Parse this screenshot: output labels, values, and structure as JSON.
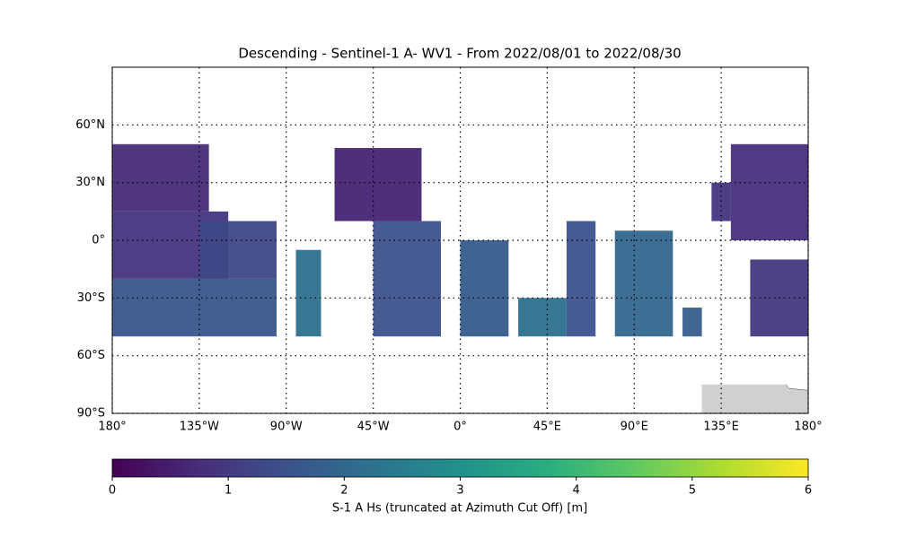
{
  "chart_data": {
    "type": "map",
    "title": "Descending - Sentinel-1 A- WV1 - From 2022/08/01 to 2022/08/30",
    "xlim": [
      -180,
      180
    ],
    "ylim": [
      -90,
      90
    ],
    "xticks": [
      {
        "value": -180,
        "label": "180°"
      },
      {
        "value": -135,
        "label": "135°W"
      },
      {
        "value": -90,
        "label": "90°W"
      },
      {
        "value": -45,
        "label": "45°W"
      },
      {
        "value": 0,
        "label": "0°"
      },
      {
        "value": 45,
        "label": "45°E"
      },
      {
        "value": 90,
        "label": "90°E"
      },
      {
        "value": 135,
        "label": "135°E"
      },
      {
        "value": 180,
        "label": "180°"
      }
    ],
    "yticks": [
      {
        "value": -90,
        "label": "90°S"
      },
      {
        "value": -60,
        "label": "60°S"
      },
      {
        "value": -30,
        "label": "30°S"
      },
      {
        "value": 0,
        "label": "0°"
      },
      {
        "value": 30,
        "label": "30°N"
      },
      {
        "value": 60,
        "label": "60°N"
      }
    ],
    "grid": true,
    "colormap": "viridis",
    "colorbar": {
      "label": "S-1 A Hs (truncated at Azimuth Cut Off) [m]",
      "clim": [
        0,
        6
      ],
      "ticks": [
        0,
        1,
        2,
        3,
        4,
        5,
        6
      ]
    },
    "cells": [
      {
        "lon": [
          -180,
          -130
        ],
        "lat": [
          15,
          50
        ],
        "value": 0.7
      },
      {
        "lon": [
          -180,
          -120
        ],
        "lat": [
          -20,
          15
        ],
        "value": 0.9
      },
      {
        "lon": [
          -180,
          -95
        ],
        "lat": [
          -50,
          -20
        ],
        "value": 1.6
      },
      {
        "lon": [
          -135,
          -95
        ],
        "lat": [
          -20,
          10
        ],
        "value": 1.3
      },
      {
        "lon": [
          -85,
          -72
        ],
        "lat": [
          -50,
          -5
        ],
        "value": 2.2
      },
      {
        "lon": [
          -65,
          -20
        ],
        "lat": [
          10,
          48
        ],
        "value": 0.6
      },
      {
        "lon": [
          -45,
          -10
        ],
        "lat": [
          -50,
          10
        ],
        "value": 1.5
      },
      {
        "lon": [
          0,
          25
        ],
        "lat": [
          -50,
          0
        ],
        "value": 1.7
      },
      {
        "lon": [
          30,
          55
        ],
        "lat": [
          -50,
          -30
        ],
        "value": 2.2
      },
      {
        "lon": [
          55,
          70
        ],
        "lat": [
          -50,
          10
        ],
        "value": 1.5
      },
      {
        "lon": [
          80,
          110
        ],
        "lat": [
          -50,
          5
        ],
        "value": 2.0
      },
      {
        "lon": [
          115,
          125
        ],
        "lat": [
          -50,
          -35
        ],
        "value": 1.8
      },
      {
        "lon": [
          150,
          180
        ],
        "lat": [
          -50,
          -10
        ],
        "value": 1.0
      },
      {
        "lon": [
          140,
          180
        ],
        "lat": [
          0,
          50
        ],
        "value": 0.8
      },
      {
        "lon": [
          130,
          140
        ],
        "lat": [
          10,
          30
        ],
        "value": 0.9
      }
    ]
  }
}
